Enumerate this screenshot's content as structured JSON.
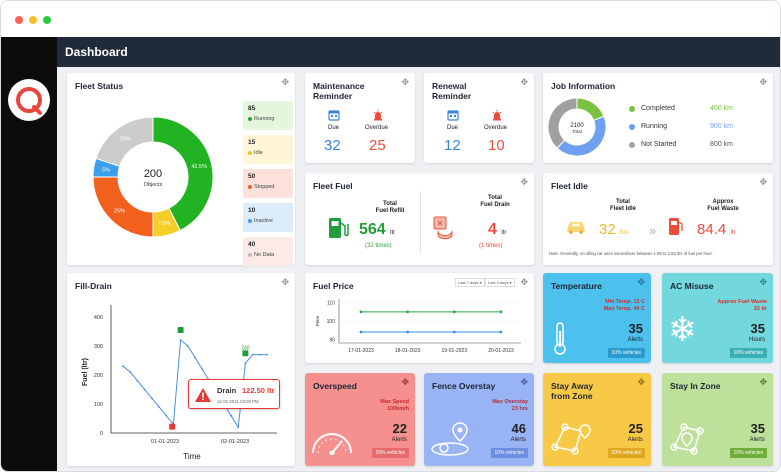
{
  "page": {
    "title": "Dashboard"
  },
  "fleet_status": {
    "title": "Fleet Status",
    "center_value": "200",
    "center_label": "Objects",
    "slices": [
      {
        "label": "42.5%",
        "value": 42.5,
        "color": "#21b321"
      },
      {
        "label": "7.5%",
        "value": 7.5,
        "color": "#f7cd2a"
      },
      {
        "label": "25%",
        "value": 25,
        "color": "#f2601e"
      },
      {
        "label": "5%",
        "value": 5,
        "color": "#3aa0ee"
      },
      {
        "label": "20%",
        "value": 20,
        "color": "#cccccc"
      }
    ],
    "boxes": [
      {
        "count": "85",
        "label": "Running",
        "bg": "#e5f6df",
        "dot": "#2aa52a"
      },
      {
        "count": "15",
        "label": "Idle",
        "bg": "#fff6d8",
        "dot": "#f3c21b"
      },
      {
        "count": "50",
        "label": "Stopped",
        "bg": "#fde2dc",
        "dot": "#f05a2c"
      },
      {
        "count": "10",
        "label": "Inactive",
        "bg": "#dcecfb",
        "dot": "#3a9be8"
      },
      {
        "count": "40",
        "label": "No Data",
        "bg": "#fbeae6",
        "dot": "#bdbdbd"
      }
    ]
  },
  "maintenance": {
    "title": "Maintenance Reminder",
    "due_label": "Due",
    "overdue_label": "Overdue",
    "due": "32",
    "overdue": "25"
  },
  "renewal": {
    "title": "Renewal Reminder",
    "due_label": "Due",
    "overdue_label": "Overdue",
    "due": "12",
    "overdue": "10"
  },
  "job_info": {
    "title": "Job Information",
    "center_value": "2100",
    "center_label": "Total",
    "items": [
      {
        "label": "Completed",
        "value": "400",
        "unit": "km",
        "color": "#7ac142",
        "share": 19
      },
      {
        "label": "Running",
        "value": "900",
        "unit": "km",
        "color": "#6e9ff1",
        "share": 43
      },
      {
        "label": "Not Started",
        "value": "800",
        "unit": "km",
        "color": "#a0a0a0",
        "share": 38
      }
    ]
  },
  "fleet_fuel": {
    "title": "Fleet Fuel",
    "refill_label1": "Total",
    "refill_label2": "Fuel Refill",
    "refill_value": "564",
    "refill_unit": "ltr",
    "refill_times": "(32 times)",
    "drain_label1": "Total",
    "drain_label2": "Fuel Drain",
    "drain_value": "4",
    "drain_unit": "ltr",
    "drain_times": "(1 times)"
  },
  "fleet_idle": {
    "title": "Fleet Idle",
    "idle_label1": "Total",
    "idle_label2": "Fleet Idle",
    "idle_value": "32",
    "idle_unit": "hrs",
    "waste_label1": "Approx",
    "waste_label2": "Fuel Waste",
    "waste_value": "84.4",
    "waste_unit": "ltr",
    "note": "Note: Generally, an idling car uses somewhere between 1.89 to 2.64 ltrs of fuel per hour."
  },
  "fill_drain": {
    "title": "Fill-Drain",
    "drain_title": "Drain",
    "drain_value": "122.50 ltr",
    "drain_time": "12-02-2021 02:00 PM",
    "marker_label": "240"
  },
  "fuel_price": {
    "title": "Fuel Price",
    "selector1": "Last 7 days",
    "selector2": "Last 4 days"
  },
  "tiles": {
    "temperature": {
      "title": "Temperature",
      "line1": "Min Temp. 13 C",
      "line2": "Max Temp. 49 C",
      "value": "35",
      "sub": "Alerts",
      "badge": "10% vehicles"
    },
    "ac_misuse": {
      "title": "AC Misuse",
      "line1": "Approx Fuel Waste",
      "line2": "22 ltr",
      "value": "35",
      "sub": "Hours",
      "badge": "10% vehicles"
    },
    "overspeed": {
      "title": "Overspeed",
      "line1": "Max Speed",
      "line2": "100km/h",
      "value": "22",
      "sub": "Alerts",
      "badge": "20% vehicles"
    },
    "fence": {
      "title": "Fence Overstay",
      "line1": "Max Overstay",
      "line2": "23 hrs",
      "value": "46",
      "sub": "Alerts",
      "badge": "10% vehicles"
    },
    "stay_away": {
      "title": "Stay Away from Zone",
      "value": "25",
      "sub": "Alerts",
      "badge": "10% vehicles"
    },
    "stay_in": {
      "title": "Stay In Zone",
      "value": "35",
      "sub": "Alerts",
      "badge": "10% vehicles"
    }
  },
  "chart_data": [
    {
      "type": "line",
      "title": "Fill-Drain",
      "xlabel": "Time",
      "ylabel": "Fuel (ltr)",
      "ylim": [
        0,
        420
      ],
      "yticks": [
        0,
        100,
        200,
        300,
        400
      ],
      "xtick_labels": [
        "01-01-2023",
        "02-01-2023"
      ],
      "series": [
        {
          "values": [
            230,
            210,
            180,
            150,
            120,
            90,
            60,
            30,
            320,
            300,
            260,
            220,
            180,
            140,
            100,
            60,
            20,
            240,
            270,
            270,
            270
          ]
        }
      ]
    },
    {
      "type": "line",
      "title": "Fuel Price",
      "ylabel": "Price",
      "ylim": [
        88,
        112
      ],
      "yticks": [
        90,
        100,
        110
      ],
      "categories": [
        "17-01-2023",
        "18-01-2023",
        "19-01-2023",
        "20-01-2023"
      ],
      "series": [
        {
          "values": [
            105,
            105,
            105,
            105
          ],
          "color": "#2ea84a"
        },
        {
          "values": [
            94,
            94,
            94,
            94
          ],
          "color": "#2f8fe0"
        }
      ]
    }
  ]
}
